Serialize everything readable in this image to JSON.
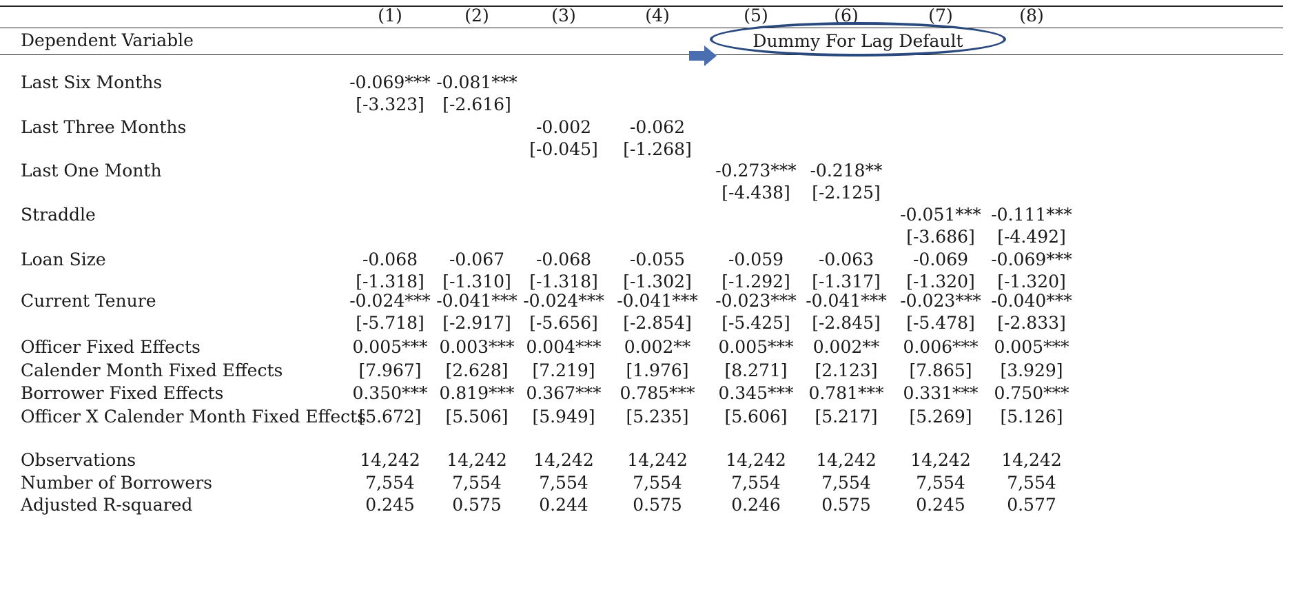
{
  "columns": [
    "(1)",
    "(2)",
    "(3)",
    "(4)",
    "(5)",
    "(6)",
    "(7)",
    "(8)"
  ],
  "dependent_variable_label": "Dependent Variable",
  "dependent_variable": "Dummy For Lag Default",
  "rows": [
    {
      "label": "Last Six Months",
      "coef": [
        "-0.069***",
        "-0.081***",
        "",
        "",
        "",
        "",
        "",
        ""
      ],
      "t": [
        "[-3.323]",
        "[-2.616]",
        "",
        "",
        "",
        "",
        "",
        ""
      ]
    },
    {
      "label": "Last Three Months",
      "coef": [
        "",
        "",
        "-0.002",
        "-0.062",
        "",
        "",
        "",
        ""
      ],
      "t": [
        "",
        "",
        "[-0.045]",
        "[-1.268]",
        "",
        "",
        "",
        ""
      ]
    },
    {
      "label": "Last One Month",
      "coef": [
        "",
        "",
        "",
        "",
        "-0.273***",
        "-0.218**",
        "",
        ""
      ],
      "t": [
        "",
        "",
        "",
        "",
        "[-4.438]",
        "[-2.125]",
        "",
        ""
      ]
    },
    {
      "label": "Straddle",
      "coef": [
        "",
        "",
        "",
        "",
        "",
        "",
        "-0.051***",
        "-0.111***"
      ],
      "t": [
        "",
        "",
        "",
        "",
        "",
        "",
        "[-3.686]",
        "[-4.492]"
      ]
    },
    {
      "label": "Loan Size",
      "coef": [
        "-0.068",
        "-0.067",
        "-0.068",
        "-0.055",
        "-0.059",
        "-0.063",
        "-0.069",
        "-0.069***"
      ],
      "t": [
        "[-1.318]",
        "[-1.310]",
        "[-1.318]",
        "[-1.302]",
        "[-1.292]",
        "[-1.317]",
        "[-1.320]",
        "[-1.320]"
      ]
    },
    {
      "label": "Current Tenure",
      "coef": [
        "-0.024***",
        "-0.041***",
        "-0.024***",
        "-0.041***",
        "-0.023***",
        "-0.041***",
        "-0.023***",
        "-0.040***"
      ],
      "t": [
        "[-5.718]",
        "[-2.917]",
        "[-5.656]",
        "[-2.854]",
        "[-5.425]",
        "[-2.845]",
        "[-5.478]",
        "[-2.833]"
      ]
    }
  ],
  "fe_labels": [
    "Officer Fixed Effects",
    "Calender Month Fixed Effects",
    "Borrower Fixed Effects",
    "Officer X Calender Month Fixed Effects"
  ],
  "fe_values": [
    [
      "0.005***",
      "0.003***",
      "0.004***",
      "0.002**",
      "0.005***",
      "0.002**",
      "0.006***",
      "0.005***"
    ],
    [
      "[7.967]",
      "[2.628]",
      "[7.219]",
      "[1.976]",
      "[8.271]",
      "[2.123]",
      "[7.865]",
      "[3.929]"
    ],
    [
      "0.350***",
      "0.819***",
      "0.367***",
      "0.785***",
      "0.345***",
      "0.781***",
      "0.331***",
      "0.750***"
    ],
    [
      "[5.672]",
      "[5.506]",
      "[5.949]",
      "[5.235]",
      "[5.606]",
      "[5.217]",
      "[5.269]",
      "[5.126]"
    ]
  ],
  "stats": [
    {
      "label": "Observations",
      "values": [
        "14,242",
        "14,242",
        "14,242",
        "14,242",
        "14,242",
        "14,242",
        "14,242",
        "14,242"
      ]
    },
    {
      "label": "Number of Borrowers",
      "values": [
        "7,554",
        "7,554",
        "7,554",
        "7,554",
        "7,554",
        "7,554",
        "7,554",
        "7,554"
      ]
    },
    {
      "label": "Adjusted R-squared",
      "values": [
        "0.245",
        "0.575",
        "0.244",
        "0.575",
        "0.246",
        "0.575",
        "0.245",
        "0.577"
      ]
    }
  ],
  "colors": {
    "highlight": "#2a4a7f",
    "arrow": "#4a6fb0"
  }
}
